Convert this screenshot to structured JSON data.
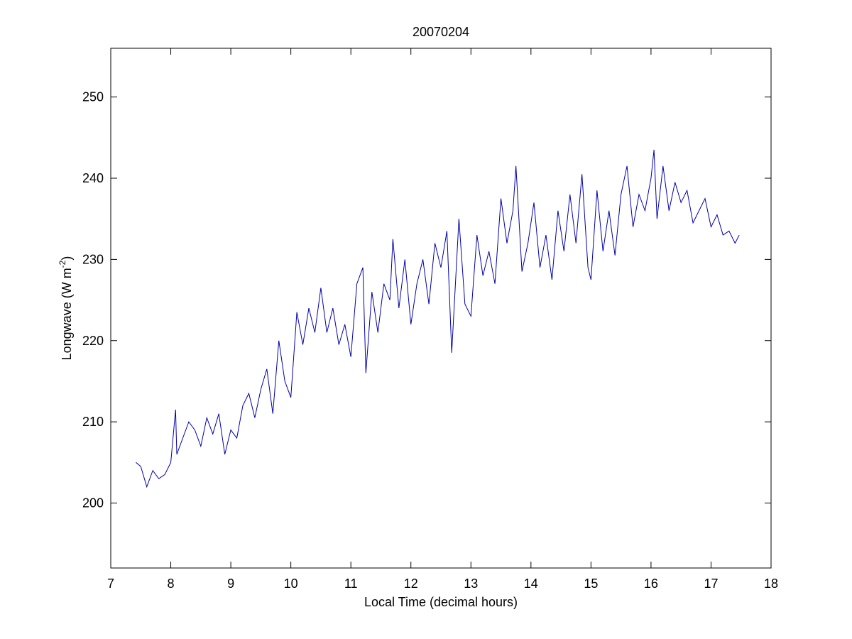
{
  "chart_data": {
    "type": "line",
    "title": "20070204",
    "xlabel": "Local Time (decimal hours)",
    "ylabel": [
      "Longwave (W m",
      "-2",
      ")"
    ],
    "xlim": [
      7,
      18
    ],
    "xticks": [
      7,
      8,
      9,
      10,
      11,
      12,
      13,
      14,
      15,
      16,
      17,
      18
    ],
    "ylim": [
      192,
      256
    ],
    "yticks": [
      200,
      210,
      220,
      230,
      240,
      250
    ],
    "grid": false,
    "series": [
      {
        "name": null,
        "color": "#0000aa",
        "x": [
          7.42,
          7.5,
          7.6,
          7.7,
          7.8,
          7.9,
          8.0,
          8.08,
          8.1,
          8.2,
          8.3,
          8.4,
          8.5,
          8.6,
          8.7,
          8.8,
          8.9,
          9.0,
          9.1,
          9.2,
          9.3,
          9.4,
          9.5,
          9.6,
          9.7,
          9.8,
          9.9,
          10.0,
          10.1,
          10.2,
          10.3,
          10.4,
          10.5,
          10.6,
          10.7,
          10.8,
          10.9,
          11.0,
          11.1,
          11.2,
          11.25,
          11.35,
          11.45,
          11.55,
          11.65,
          11.7,
          11.8,
          11.9,
          12.0,
          12.1,
          12.2,
          12.3,
          12.4,
          12.5,
          12.6,
          12.68,
          12.8,
          12.9,
          13.0,
          13.1,
          13.2,
          13.3,
          13.4,
          13.5,
          13.6,
          13.7,
          13.75,
          13.85,
          13.95,
          14.05,
          14.15,
          14.25,
          14.35,
          14.45,
          14.55,
          14.65,
          14.75,
          14.85,
          14.95,
          15.0,
          15.1,
          15.2,
          15.3,
          15.4,
          15.5,
          15.6,
          15.7,
          15.8,
          15.9,
          16.0,
          16.05,
          16.1,
          16.2,
          16.3,
          16.4,
          16.5,
          16.6,
          16.7,
          16.8,
          16.9,
          17.0,
          17.1,
          17.2,
          17.3,
          17.4,
          17.47
        ],
        "values": [
          205,
          204.5,
          202,
          204,
          203,
          203.5,
          205,
          211.5,
          206,
          208,
          210,
          209,
          207,
          210.5,
          208.5,
          211,
          206,
          209,
          208,
          212,
          213.5,
          210.5,
          214,
          216.5,
          211,
          220,
          215,
          213,
          223.5,
          219.5,
          224,
          221,
          226.5,
          221,
          224,
          219.5,
          222,
          218,
          227,
          229,
          216,
          226,
          221,
          227,
          225,
          232.5,
          224,
          230,
          222,
          227,
          230,
          224.5,
          232,
          229,
          233.5,
          218.5,
          235,
          224.5,
          223,
          233,
          228,
          231,
          227,
          237.5,
          232,
          236,
          241.5,
          228.5,
          232,
          237,
          229,
          233,
          227.5,
          236,
          231,
          238,
          232,
          240.5,
          229,
          227.5,
          238.5,
          231,
          236,
          230.5,
          238,
          241.5,
          234,
          238,
          236,
          240,
          243.5,
          235,
          241.5,
          236,
          239.5,
          237,
          238.5,
          234.5,
          236,
          237.5,
          234,
          235.5,
          233,
          233.5,
          232,
          233
        ]
      }
    ]
  }
}
